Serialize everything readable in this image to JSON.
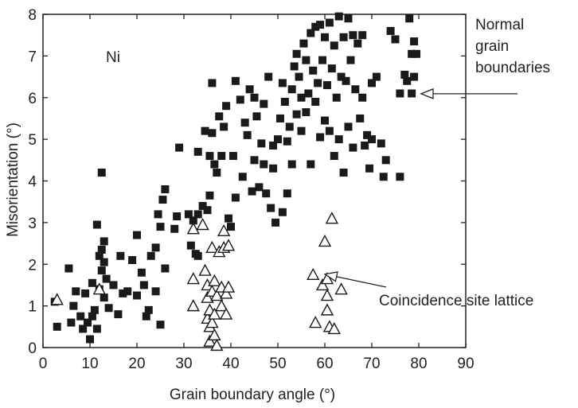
{
  "chart_data": {
    "type": "scatter",
    "title": "",
    "xlabel": "Grain boundary angle (°)",
    "ylabel": "Misorientation (°)",
    "xlim": [
      0,
      90
    ],
    "ylim": [
      0,
      8
    ],
    "xticks": [
      0,
      10,
      20,
      30,
      40,
      50,
      60,
      70,
      80,
      90
    ],
    "yticks": [
      0,
      1,
      2,
      3,
      4,
      5,
      6,
      7,
      8
    ],
    "grid": false,
    "legend": "none",
    "material_label": "Ni",
    "annotations": [
      {
        "lines": [
          "Normal",
          "grain",
          "boundaries"
        ],
        "target": [
          80,
          6.15
        ]
      },
      {
        "lines": [
          "Coincidence site lattice"
        ],
        "target": [
          59.5,
          1.8
        ]
      }
    ],
    "series": [
      {
        "marker": "filled-square",
        "color": "#1a1a1a",
        "points": [
          [
            2.5,
            1.1
          ],
          [
            3,
            0.5
          ],
          [
            5.5,
            1.9
          ],
          [
            6,
            0.6
          ],
          [
            6.5,
            1.0
          ],
          [
            7,
            1.35
          ],
          [
            8,
            0.75
          ],
          [
            8.5,
            0.45
          ],
          [
            9,
            1.3
          ],
          [
            9.5,
            0.6
          ],
          [
            10,
            0.2
          ],
          [
            10.5,
            1.55
          ],
          [
            10.5,
            0.75
          ],
          [
            11,
            0.9
          ],
          [
            11.5,
            0.45
          ],
          [
            12,
            1.4
          ],
          [
            11.5,
            2.95
          ],
          [
            12,
            2.2
          ],
          [
            12.5,
            1.85
          ],
          [
            12.5,
            2.35
          ],
          [
            12.5,
            4.2
          ],
          [
            13,
            2.55
          ],
          [
            13,
            1.2
          ],
          [
            13.5,
            1.65
          ],
          [
            13,
            2.05
          ],
          [
            14,
            0.95
          ],
          [
            15,
            1.5
          ],
          [
            16,
            0.8
          ],
          [
            16.5,
            2.2
          ],
          [
            17,
            1.3
          ],
          [
            18,
            1.35
          ],
          [
            19,
            2.1
          ],
          [
            20,
            2.7
          ],
          [
            20,
            1.25
          ],
          [
            21,
            1.8
          ],
          [
            21.5,
            1.5
          ],
          [
            22,
            0.75
          ],
          [
            22.5,
            0.9
          ],
          [
            23,
            2.2
          ],
          [
            24,
            1.35
          ],
          [
            24,
            2.4
          ],
          [
            24.5,
            3.2
          ],
          [
            25,
            2.9
          ],
          [
            25,
            0.55
          ],
          [
            25.5,
            3.55
          ],
          [
            26,
            3.8
          ],
          [
            26,
            1.9
          ],
          [
            28,
            2.85
          ],
          [
            28.5,
            3.15
          ],
          [
            29,
            4.8
          ],
          [
            31,
            3.2
          ],
          [
            31.5,
            2.45
          ],
          [
            32,
            3.05
          ],
          [
            32.5,
            2.25
          ],
          [
            33,
            4.7
          ],
          [
            33,
            3.2
          ],
          [
            33,
            2.2
          ],
          [
            34,
            3.4
          ],
          [
            34.5,
            5.2
          ],
          [
            35,
            3.3
          ],
          [
            35.5,
            3.65
          ],
          [
            35.5,
            4.6
          ],
          [
            36,
            5.15
          ],
          [
            36,
            6.35
          ],
          [
            36.5,
            4.4
          ],
          [
            37,
            4.2
          ],
          [
            37.5,
            5.55
          ],
          [
            38,
            4.6
          ],
          [
            38.5,
            5.3
          ],
          [
            39,
            5.8
          ],
          [
            39.5,
            3.1
          ],
          [
            40,
            2.9
          ],
          [
            40.5,
            4.6
          ],
          [
            41,
            3.6
          ],
          [
            41,
            6.4
          ],
          [
            42,
            5.95
          ],
          [
            42.5,
            4.1
          ],
          [
            43,
            5.4
          ],
          [
            43.5,
            5.1
          ],
          [
            44,
            6.2
          ],
          [
            44.5,
            3.75
          ],
          [
            45,
            4.5
          ],
          [
            45,
            6.0
          ],
          [
            45.5,
            5.55
          ],
          [
            46,
            3.85
          ],
          [
            46.5,
            4.9
          ],
          [
            47,
            4.4
          ],
          [
            47,
            5.85
          ],
          [
            47.5,
            3.7
          ],
          [
            48,
            6.5
          ],
          [
            48.5,
            3.35
          ],
          [
            49,
            4.85
          ],
          [
            49,
            4.3
          ],
          [
            49.5,
            3.0
          ],
          [
            50,
            5.0
          ],
          [
            50.5,
            5.5
          ],
          [
            51,
            3.25
          ],
          [
            51,
            6.35
          ],
          [
            51.5,
            5.9
          ],
          [
            52,
            4.95
          ],
          [
            52,
            3.7
          ],
          [
            52.5,
            5.3
          ],
          [
            53,
            6.2
          ],
          [
            53,
            4.4
          ],
          [
            53.5,
            6.75
          ],
          [
            54,
            5.6
          ],
          [
            54,
            7.05
          ],
          [
            54.5,
            6.5
          ],
          [
            55,
            5.2
          ],
          [
            55,
            6.0
          ],
          [
            55.5,
            7.3
          ],
          [
            56,
            5.65
          ],
          [
            56,
            6.9
          ],
          [
            56.5,
            6.1
          ],
          [
            57,
            7.55
          ],
          [
            57,
            4.4
          ],
          [
            57.5,
            6.65
          ],
          [
            58,
            7.7
          ],
          [
            58,
            5.9
          ],
          [
            58.5,
            6.35
          ],
          [
            59,
            7.75
          ],
          [
            59,
            5.05
          ],
          [
            59.5,
            6.9
          ],
          [
            60,
            7.45
          ],
          [
            60,
            5.45
          ],
          [
            60.5,
            6.3
          ],
          [
            61,
            7.8
          ],
          [
            61,
            5.2
          ],
          [
            61.5,
            6.7
          ],
          [
            62,
            7.25
          ],
          [
            62,
            4.6
          ],
          [
            62.5,
            6.0
          ],
          [
            63,
            7.95
          ],
          [
            63,
            5.0
          ],
          [
            63.5,
            6.5
          ],
          [
            64,
            7.45
          ],
          [
            64,
            4.2
          ],
          [
            64.5,
            6.4
          ],
          [
            65,
            7.9
          ],
          [
            65,
            5.3
          ],
          [
            65.5,
            6.9
          ],
          [
            66,
            7.5
          ],
          [
            66,
            4.8
          ],
          [
            66.5,
            6.2
          ],
          [
            67,
            7.3
          ],
          [
            67.5,
            5.5
          ],
          [
            68,
            6.0
          ],
          [
            68,
            7.5
          ],
          [
            68.5,
            4.85
          ],
          [
            69,
            5.1
          ],
          [
            69.5,
            4.3
          ],
          [
            70,
            6.35
          ],
          [
            70,
            5.0
          ],
          [
            71,
            6.5
          ],
          [
            72,
            4.9
          ],
          [
            72.5,
            4.1
          ],
          [
            73,
            4.5
          ],
          [
            74,
            7.6
          ],
          [
            75,
            7.4
          ],
          [
            76,
            4.1
          ],
          [
            76,
            6.1
          ],
          [
            77,
            6.55
          ],
          [
            77.5,
            6.4
          ],
          [
            78,
            7.9
          ],
          [
            78.5,
            6.1
          ],
          [
            78.5,
            7.05
          ],
          [
            79,
            7.35
          ],
          [
            79,
            6.5
          ],
          [
            79.5,
            7.05
          ]
        ]
      },
      {
        "marker": "open-triangle",
        "color": "#1a1a1a",
        "points": [
          [
            3,
            1.15
          ],
          [
            12,
            1.4
          ],
          [
            32,
            2.85
          ],
          [
            32,
            1.65
          ],
          [
            32,
            1.0
          ],
          [
            34,
            2.95
          ],
          [
            34.5,
            1.85
          ],
          [
            35,
            1.5
          ],
          [
            35,
            1.2
          ],
          [
            35,
            0.7
          ],
          [
            35.5,
            0.9
          ],
          [
            35.5,
            0.5
          ],
          [
            35.5,
            0.15
          ],
          [
            36,
            2.4
          ],
          [
            36,
            1.35
          ],
          [
            36,
            0.6
          ],
          [
            36.5,
            1.6
          ],
          [
            36.5,
            0.8
          ],
          [
            36.5,
            0.3
          ],
          [
            37,
            1.25
          ],
          [
            37,
            0.05
          ],
          [
            37.5,
            2.3
          ],
          [
            38,
            1.45
          ],
          [
            38,
            1.0
          ],
          [
            38.5,
            2.8
          ],
          [
            38.5,
            2.4
          ],
          [
            39,
            1.3
          ],
          [
            39,
            0.8
          ],
          [
            39.5,
            1.45
          ],
          [
            39.5,
            2.45
          ],
          [
            57.5,
            1.75
          ],
          [
            58,
            0.6
          ],
          [
            59.5,
            1.5
          ],
          [
            60,
            2.55
          ],
          [
            60.5,
            1.25
          ],
          [
            60.5,
            0.9
          ],
          [
            60.5,
            1.65
          ],
          [
            61,
            0.5
          ],
          [
            61.5,
            3.1
          ],
          [
            62,
            0.45
          ],
          [
            63.5,
            1.4
          ]
        ]
      }
    ]
  }
}
